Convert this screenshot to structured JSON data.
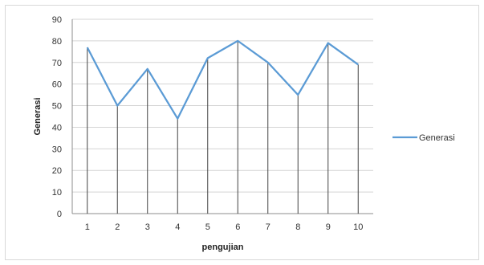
{
  "chart_data": {
    "type": "line",
    "categories": [
      "1",
      "2",
      "3",
      "4",
      "5",
      "6",
      "7",
      "8",
      "9",
      "10"
    ],
    "series": [
      {
        "name": "Generasi",
        "values": [
          77,
          50,
          67,
          44,
          72,
          80,
          70,
          55,
          79,
          69
        ],
        "color": "#5b9bd5"
      }
    ],
    "title": "",
    "xlabel": "pengujian",
    "ylabel": "Generasi",
    "ylim": [
      0,
      90
    ],
    "yticks": [
      "0",
      "10",
      "20",
      "30",
      "40",
      "50",
      "60",
      "70",
      "80",
      "90"
    ],
    "grid": true,
    "legend_position": "right"
  }
}
